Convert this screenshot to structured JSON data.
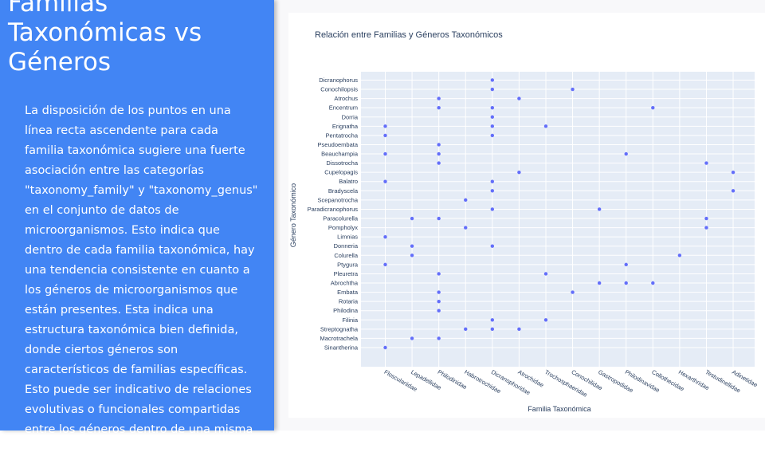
{
  "slide": {
    "title": "Familias Taxonómicas vs Géneros",
    "body": "La disposición de los puntos en una línea recta ascendente  para cada familia taxonómica sugiere una fuerte asociación entre las categorías \"taxonomy_family\" y \"taxonomy_genus\"  en el conjunto de datos de microorganismos. Esto indica que dentro de cada familia taxonómica, hay una tendencia  consistente en cuanto a los géneros de microorganismos que están presentes. Esta indica una estructura taxonómica bien definida, donde ciertos géneros son característicos de familias específicas. Esto puede ser indicativo de relaciones evolutivas o funcionales compartidas  entre los géneros dentro de una misma familia taxonómica."
  },
  "colors": {
    "panel": "#4285f4",
    "plot_bg": "#e5ecf6",
    "marker": "#636efa",
    "text": "#2a3f5f"
  },
  "chart_data": {
    "type": "scatter",
    "title": "Relación entre Familias y Géneros Taxonómicos",
    "xlabel": "Familia Taxonómica",
    "ylabel": "Género Taxonómico",
    "x_categories": [
      "Flosculariidae",
      "Lepadellidae",
      "Philodinidae",
      "Habrotrochidae",
      "Dicranophoridae",
      "Atrochidae",
      "Trochosphaeridae",
      "Conochilidae",
      "Gastropodidae",
      "Philodinavidae",
      "Collothecidae",
      "Hexarthridae",
      "Testudinellidae",
      "Adinetidae"
    ],
    "y_categories": [
      "Sinantherina",
      "Macrotrachela",
      "Streptognatha",
      "Filinia",
      "Philodina",
      "Rotaria",
      "Embata",
      "Abrochtha",
      "Pleuretra",
      "Ptygura",
      "Colurella",
      "Donneria",
      "Limnias",
      "Pompholyx",
      "Paracolurella",
      "Paradicranophorus",
      "Scepanotrocha",
      "Bradyscela",
      "Balatro",
      "Cupelopagis",
      "Dissotrocha",
      "Beauchampia",
      "Pseudoembata",
      "Pentatrocha",
      "Erignatha",
      "Dorria",
      "Encentrum",
      "Atrochus",
      "Conochilopsis",
      "Dicranophorus"
    ],
    "points": [
      {
        "x": "Flosculariidae",
        "y": "Sinantherina"
      },
      {
        "x": "Flosculariidae",
        "y": "Ptygura"
      },
      {
        "x": "Flosculariidae",
        "y": "Limnias"
      },
      {
        "x": "Flosculariidae",
        "y": "Balatro"
      },
      {
        "x": "Flosculariidae",
        "y": "Beauchampia"
      },
      {
        "x": "Flosculariidae",
        "y": "Pentatrocha"
      },
      {
        "x": "Flosculariidae",
        "y": "Erignatha"
      },
      {
        "x": "Lepadellidae",
        "y": "Macrotrachela"
      },
      {
        "x": "Lepadellidae",
        "y": "Colurella"
      },
      {
        "x": "Lepadellidae",
        "y": "Donneria"
      },
      {
        "x": "Lepadellidae",
        "y": "Paracolurella"
      },
      {
        "x": "Philodinidae",
        "y": "Macrotrachela"
      },
      {
        "x": "Philodinidae",
        "y": "Philodina"
      },
      {
        "x": "Philodinidae",
        "y": "Rotaria"
      },
      {
        "x": "Philodinidae",
        "y": "Embata"
      },
      {
        "x": "Philodinidae",
        "y": "Pleuretra"
      },
      {
        "x": "Philodinidae",
        "y": "Paracolurella"
      },
      {
        "x": "Philodinidae",
        "y": "Dissotrocha"
      },
      {
        "x": "Philodinidae",
        "y": "Beauchampia"
      },
      {
        "x": "Philodinidae",
        "y": "Pseudoembata"
      },
      {
        "x": "Philodinidae",
        "y": "Encentrum"
      },
      {
        "x": "Philodinidae",
        "y": "Atrochus"
      },
      {
        "x": "Habrotrochidae",
        "y": "Streptognatha"
      },
      {
        "x": "Habrotrochidae",
        "y": "Pompholyx"
      },
      {
        "x": "Habrotrochidae",
        "y": "Scepanotrocha"
      },
      {
        "x": "Dicranophoridae",
        "y": "Streptognatha"
      },
      {
        "x": "Dicranophoridae",
        "y": "Filinia"
      },
      {
        "x": "Dicranophoridae",
        "y": "Donneria"
      },
      {
        "x": "Dicranophoridae",
        "y": "Paradicranophorus"
      },
      {
        "x": "Dicranophoridae",
        "y": "Bradyscela"
      },
      {
        "x": "Dicranophoridae",
        "y": "Balatro"
      },
      {
        "x": "Dicranophoridae",
        "y": "Pentatrocha"
      },
      {
        "x": "Dicranophoridae",
        "y": "Erignatha"
      },
      {
        "x": "Dicranophoridae",
        "y": "Dorria"
      },
      {
        "x": "Dicranophoridae",
        "y": "Encentrum"
      },
      {
        "x": "Dicranophoridae",
        "y": "Conochilopsis"
      },
      {
        "x": "Dicranophoridae",
        "y": "Dicranophorus"
      },
      {
        "x": "Atrochidae",
        "y": "Streptognatha"
      },
      {
        "x": "Atrochidae",
        "y": "Cupelopagis"
      },
      {
        "x": "Atrochidae",
        "y": "Atrochus"
      },
      {
        "x": "Trochosphaeridae",
        "y": "Filinia"
      },
      {
        "x": "Trochosphaeridae",
        "y": "Pleuretra"
      },
      {
        "x": "Trochosphaeridae",
        "y": "Erignatha"
      },
      {
        "x": "Conochilidae",
        "y": "Embata"
      },
      {
        "x": "Conochilidae",
        "y": "Conochilopsis"
      },
      {
        "x": "Gastropodidae",
        "y": "Abrochtha"
      },
      {
        "x": "Gastropodidae",
        "y": "Paradicranophorus"
      },
      {
        "x": "Philodinavidae",
        "y": "Abrochtha"
      },
      {
        "x": "Philodinavidae",
        "y": "Ptygura"
      },
      {
        "x": "Philodinavidae",
        "y": "Beauchampia"
      },
      {
        "x": "Collothecidae",
        "y": "Abrochtha"
      },
      {
        "x": "Collothecidae",
        "y": "Encentrum"
      },
      {
        "x": "Hexarthridae",
        "y": "Colurella"
      },
      {
        "x": "Testudinellidae",
        "y": "Pompholyx"
      },
      {
        "x": "Testudinellidae",
        "y": "Paracolurella"
      },
      {
        "x": "Testudinellidae",
        "y": "Dissotrocha"
      },
      {
        "x": "Adinetidae",
        "y": "Bradyscela"
      },
      {
        "x": "Adinetidae",
        "y": "Cupelopagis"
      }
    ]
  }
}
